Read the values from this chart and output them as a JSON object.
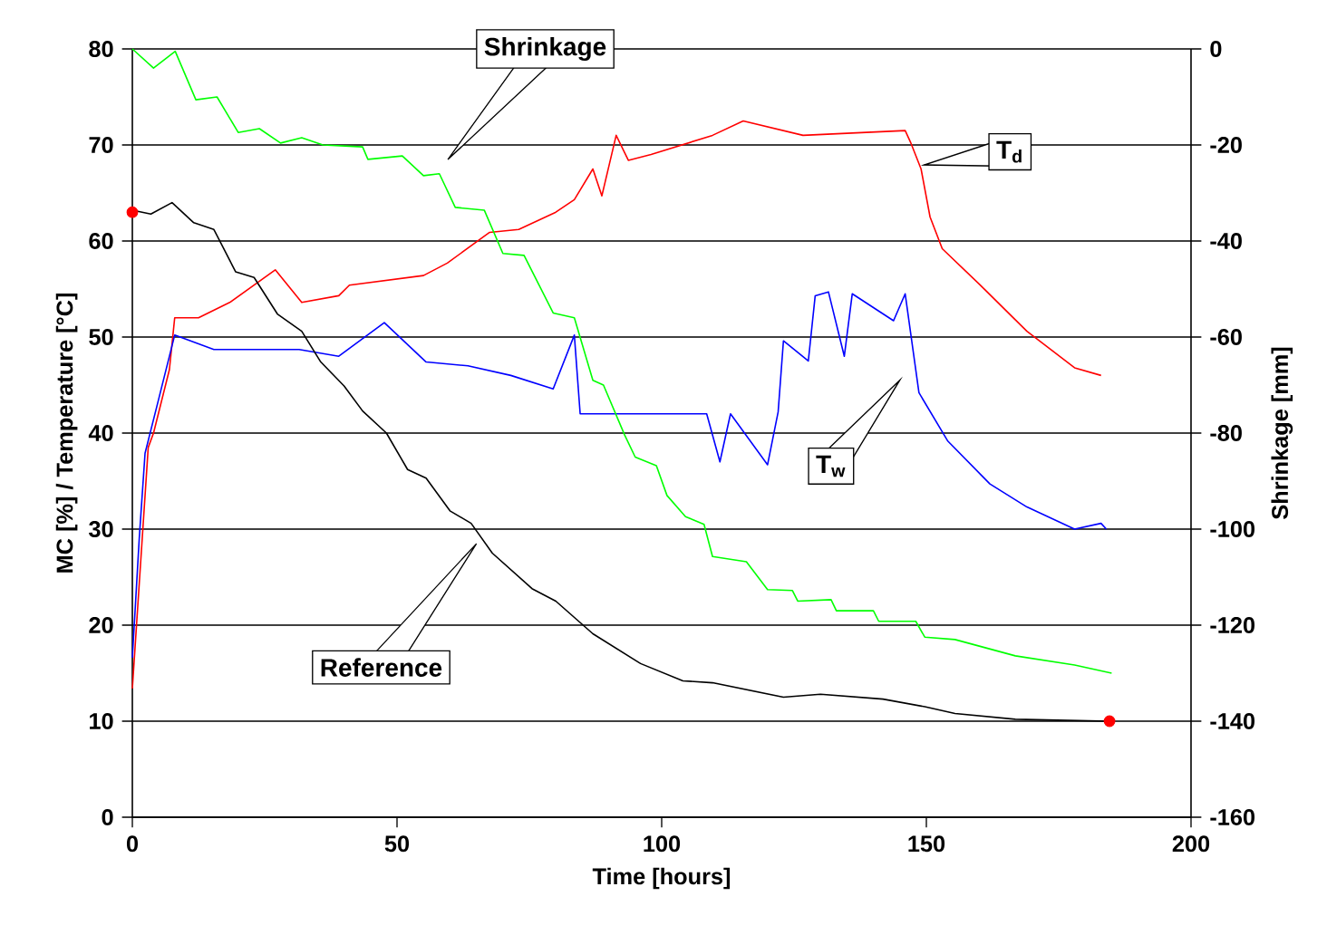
{
  "chart_data": {
    "type": "line",
    "xlabel": "Time [hours]",
    "ylabel": "MC [%] / Temperature [°C]",
    "y2label": "Shrinkage [mm]",
    "xlim": [
      0,
      200
    ],
    "xticks": [
      0,
      50,
      100,
      150,
      200
    ],
    "ylim": [
      0,
      80
    ],
    "yticks": [
      0,
      10,
      20,
      30,
      40,
      50,
      60,
      70,
      80
    ],
    "y2lim": [
      -160,
      0
    ],
    "y2ticks": [
      -160,
      -140,
      -120,
      -100,
      -80,
      -60,
      -40,
      -20,
      0
    ],
    "grid": "y",
    "series": [
      {
        "name": "T$_{d}$",
        "color": "#ff0000",
        "x": [
          0,
          3,
          4,
          7,
          8,
          12.5,
          18.4,
          27,
          32,
          39,
          41,
          55,
          59.5,
          67.5,
          73,
          80,
          83.5,
          87,
          88.7,
          91.4,
          93.7,
          98,
          109.6,
          115.4,
          126.7,
          146,
          147,
          149,
          150.7,
          153,
          160,
          169,
          178,
          183
        ],
        "values": [
          13.4,
          38.5,
          40,
          46.6,
          52,
          52,
          53.6,
          57,
          53.6,
          54.3,
          55.4,
          56.4,
          57.7,
          60.9,
          61.2,
          63,
          64.3,
          67.5,
          64.7,
          71,
          68.4,
          69,
          71,
          72.5,
          71,
          71.5,
          70.3,
          67.5,
          62.5,
          59.2,
          55.5,
          50.6,
          46.8,
          46
        ]
      },
      {
        "name": "T$_{w}$",
        "color": "#0000ff",
        "x": [
          0,
          1.3,
          2.4,
          5,
          8,
          15.4,
          23,
          31.5,
          39,
          47.6,
          55.5,
          63.4,
          71.5,
          79.5,
          83.5,
          84.6,
          108.5,
          111,
          113,
          120,
          122,
          123,
          127.7,
          129,
          131.5,
          134.5,
          136,
          143.8,
          146,
          148.6,
          154,
          162,
          169,
          178,
          183,
          184
        ],
        "values": [
          16.6,
          29,
          37.9,
          43.6,
          50.2,
          48.7,
          48.7,
          48.7,
          48,
          51.5,
          47.4,
          47,
          46,
          44.6,
          50.2,
          42,
          42,
          37,
          42,
          36.7,
          42.2,
          49.6,
          47.5,
          54.3,
          54.7,
          48,
          54.5,
          51.7,
          54.5,
          44.2,
          39.2,
          34.7,
          32.3,
          30,
          30.6,
          30
        ]
      },
      {
        "name": "Reference",
        "color": "#000000",
        "x": [
          0,
          3.5,
          7.5,
          11.6,
          15.4,
          19.5,
          23,
          27.4,
          32,
          35.6,
          40,
          43.5,
          48,
          52,
          55.5,
          60,
          64,
          68,
          75.5,
          80,
          87,
          96,
          104,
          109.6,
          123,
          130,
          141.8,
          149.7,
          155.4,
          166.8,
          184.6
        ],
        "values": [
          63.2,
          62.8,
          64,
          61.9,
          61.2,
          56.8,
          56.2,
          52.4,
          50.6,
          47.4,
          44.9,
          42.3,
          40,
          36.2,
          35.3,
          31.9,
          30.6,
          27.5,
          23.8,
          22.5,
          19.1,
          16,
          14.2,
          14,
          12.5,
          12.8,
          12.3,
          11.5,
          10.8,
          10.2,
          10
        ]
      },
      {
        "name": "Shrinkage",
        "color": "#00ff00",
        "axis": "y2",
        "x": [
          0,
          4,
          8.1,
          12,
          16,
          20,
          24,
          28,
          32,
          36,
          43.5,
          44.5,
          51,
          55,
          58,
          61,
          66.5,
          70,
          74,
          79.5,
          83.5,
          87,
          89,
          93,
          95,
          99,
          101,
          104.5,
          108,
          109.6,
          116,
          120,
          124.7,
          125.7,
          132,
          133,
          140,
          141,
          148,
          149.7,
          155.4,
          166.8,
          178,
          185
        ],
        "values": [
          0,
          -4,
          -0.5,
          -10.6,
          -10,
          -17.4,
          -16.6,
          -19.6,
          -18.5,
          -20,
          -20.4,
          -23,
          -22.3,
          -26.4,
          -26,
          -33,
          -33.6,
          -42.6,
          -43,
          -55,
          -56,
          -69,
          -70,
          -80.4,
          -85,
          -86.8,
          -93,
          -97.4,
          -99,
          -105.7,
          -106.8,
          -112.6,
          -112.8,
          -115,
          -114.7,
          -117,
          -117,
          -119.2,
          -119.2,
          -122.5,
          -123,
          -126.4,
          -128.3,
          -130
        ]
      },
      {
        "type": "scatter",
        "color": "#ff0000",
        "x": [
          0,
          184.6
        ],
        "values": [
          63,
          10
        ]
      }
    ]
  }
}
